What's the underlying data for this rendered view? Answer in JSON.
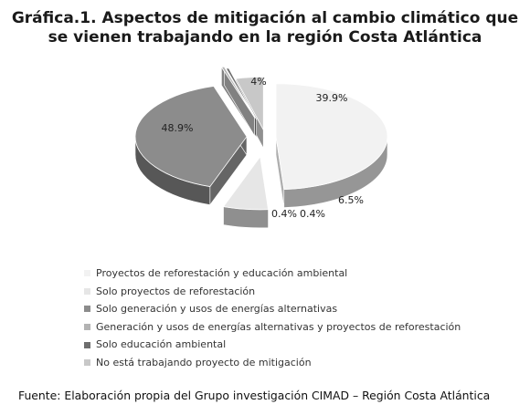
{
  "chart_data": {
    "type": "pie",
    "title": [
      "Gráfica.1. Aspectos de mitigación al cambio climático que",
      "se vienen trabajando en la región Costa Atlántica"
    ],
    "categories": [
      "Proyectos de reforestación y educación ambiental",
      "Solo proyectos de reforestación",
      "Solo generación y usos de energías alternativas",
      "Generación y usos de energías alternativas y proyectos de reforestación",
      "Solo educación ambiental",
      "No está trabajando proyecto de mitigación"
    ],
    "values": [
      48.9,
      6.5,
      39.9,
      0.4,
      0.4,
      4
    ],
    "data_labels": [
      "48.9%",
      "6.5%",
      "39.9%",
      "0.4%",
      "0.4%",
      "4%"
    ],
    "colors": [
      "#f2f2f2",
      "#e6e6e6",
      "#8c8c8c",
      "#b3b3b3",
      "#6e6e6e",
      "#c8c8c8"
    ],
    "legend_placement": "bottom-left"
  },
  "source": "Fuente: Elaboración propia del Grupo investigación CIMAD – Región Costa Atlántica"
}
